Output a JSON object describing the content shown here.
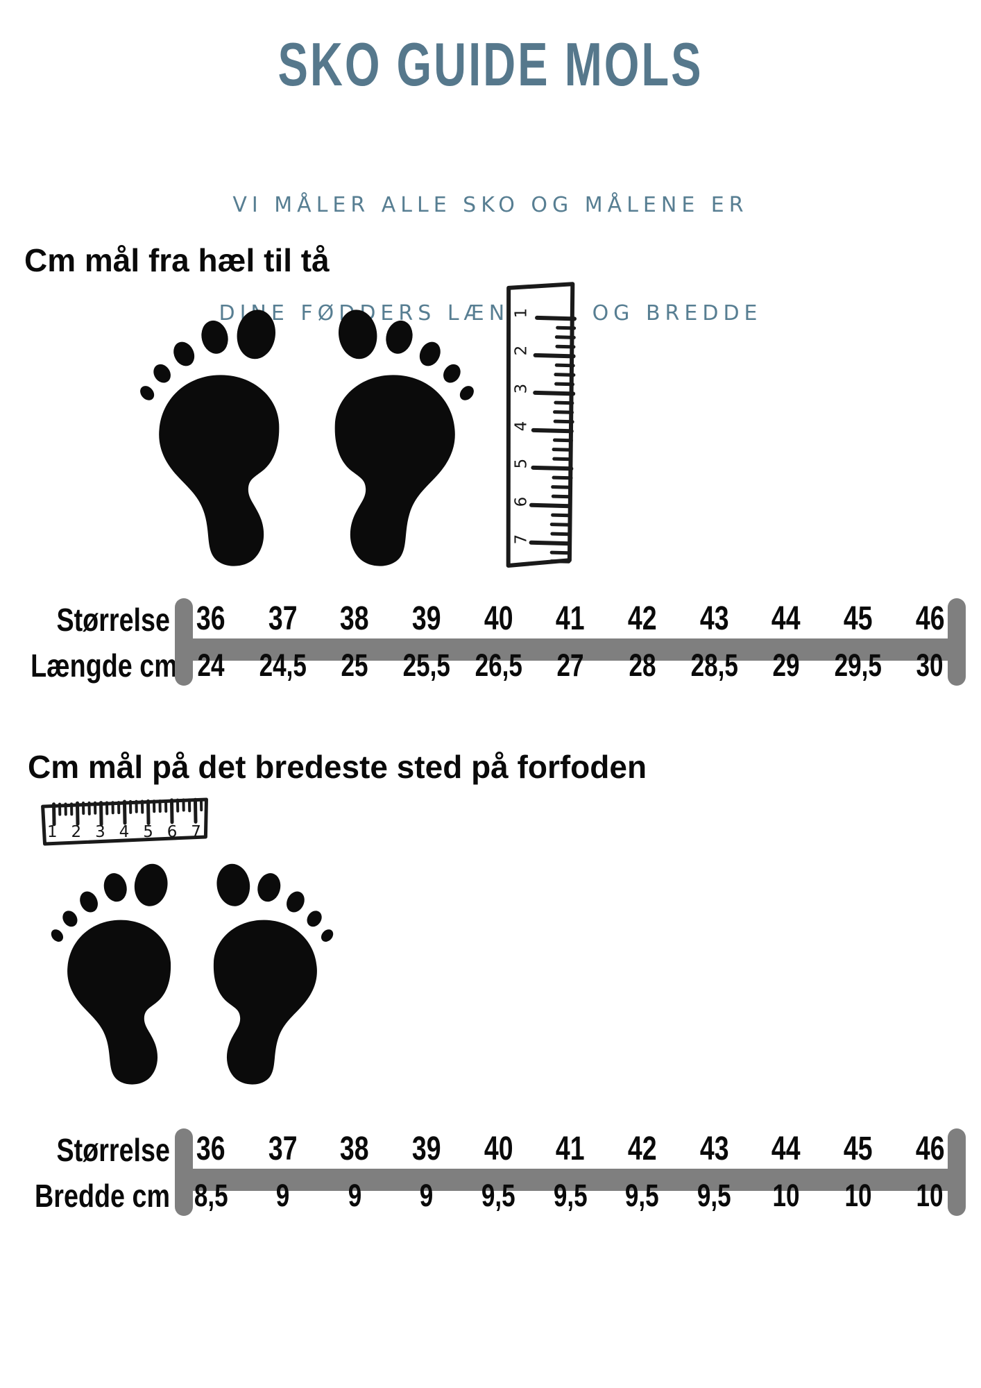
{
  "page": {
    "title": "SKO GUIDE MOLS",
    "subtitle_line1": "VI MÅLER ALLE SKO OG MÅLENE ER",
    "subtitle_line2": "DINE FØDDERS LÆNGDE  OG BREDDE",
    "colors": {
      "title_blue": "#56788c",
      "subtitle_blue": "#577e92",
      "scale_bar_gray": "#7f7f7f",
      "ink_black": "#0a0a0a"
    }
  },
  "section_length": {
    "heading": "Cm mål fra hæl til tå",
    "ruler_numbers": [
      "1",
      "2",
      "3",
      "4",
      "5",
      "6",
      "7"
    ],
    "scale": {
      "row1_label": "Størrelse",
      "row2_label": "Længde cm",
      "sizes": [
        "36",
        "37",
        "38",
        "39",
        "40",
        "41",
        "42",
        "43",
        "44",
        "45",
        "46"
      ],
      "values": [
        "24",
        "24,5",
        "25",
        "25,5",
        "26,5",
        "27",
        "28",
        "28,5",
        "29",
        "29,5",
        "30"
      ]
    }
  },
  "section_width": {
    "heading": "Cm mål på det bredeste sted på forfoden",
    "ruler_numbers": [
      "1",
      "2",
      "3",
      "4",
      "5",
      "6",
      "7"
    ],
    "scale": {
      "row1_label": "Størrelse",
      "row2_label": "Bredde cm",
      "sizes": [
        "36",
        "37",
        "38",
        "39",
        "40",
        "41",
        "42",
        "43",
        "44",
        "45",
        "46"
      ],
      "values": [
        "8,5",
        "9",
        "9",
        "9",
        "9,5",
        "9,5",
        "9,5",
        "9,5",
        "10",
        "10",
        "10"
      ]
    }
  }
}
